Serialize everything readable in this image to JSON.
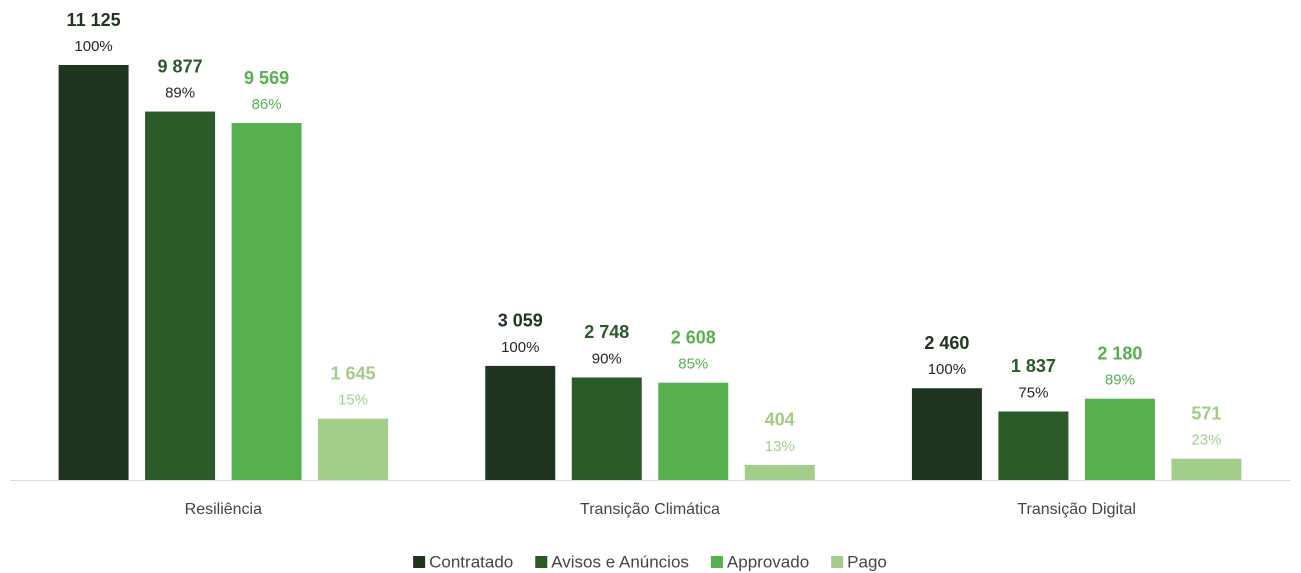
{
  "chart_data": {
    "type": "bar",
    "categories": [
      "Resiliência",
      "Transição Climática",
      "Transição Digital"
    ],
    "series": [
      {
        "name": "Contratado",
        "color": "#1f3520",
        "values": [
          11125,
          3059,
          2460
        ],
        "value_labels": [
          "11 125",
          "3 059",
          "2 460"
        ],
        "percent_labels": [
          "100%",
          "100%",
          "100%"
        ]
      },
      {
        "name": "Avisos e Anúncios",
        "color": "#2a5a28",
        "values": [
          9877,
          2748,
          1837
        ],
        "value_labels": [
          "9 877",
          "2 748",
          "1 837"
        ],
        "percent_labels": [
          "89%",
          "90%",
          "75%"
        ]
      },
      {
        "name": "Approvado",
        "color": "#55b04d",
        "values": [
          9569,
          2608,
          2180
        ],
        "value_labels": [
          "9 569",
          "2 608",
          "2 180"
        ],
        "percent_labels": [
          "86%",
          "85%",
          "89%"
        ]
      },
      {
        "name": "Pago",
        "color": "#a3cd8a",
        "values": [
          1645,
          404,
          571
        ],
        "value_labels": [
          "1 645",
          "404",
          "571"
        ],
        "percent_labels": [
          "15%",
          "13%",
          "23%"
        ]
      }
    ],
    "legend": "bottom"
  }
}
